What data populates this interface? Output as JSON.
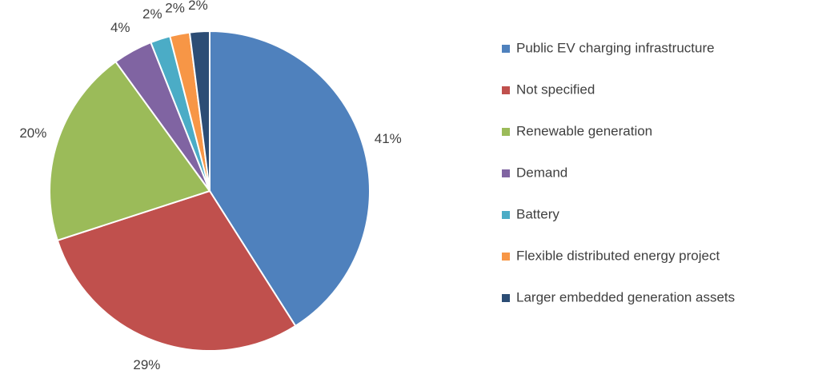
{
  "chart_data": {
    "type": "pie",
    "categories": [
      "Public EV charging infrastructure",
      "Not specified",
      "Renewable generation",
      "Demand",
      "Battery",
      "Flexible distributed energy project",
      "Larger embedded generation assets"
    ],
    "values": [
      41,
      29,
      20,
      4,
      2,
      2,
      2
    ],
    "value_labels": [
      "41%",
      "29%",
      "20%",
      "4%",
      "2%",
      "2%",
      "2%"
    ],
    "colors": [
      "#4f81bd",
      "#c0504d",
      "#9bbb59",
      "#8064a2",
      "#4bacc6",
      "#f79646",
      "#2c4d75"
    ],
    "legend": "right"
  }
}
